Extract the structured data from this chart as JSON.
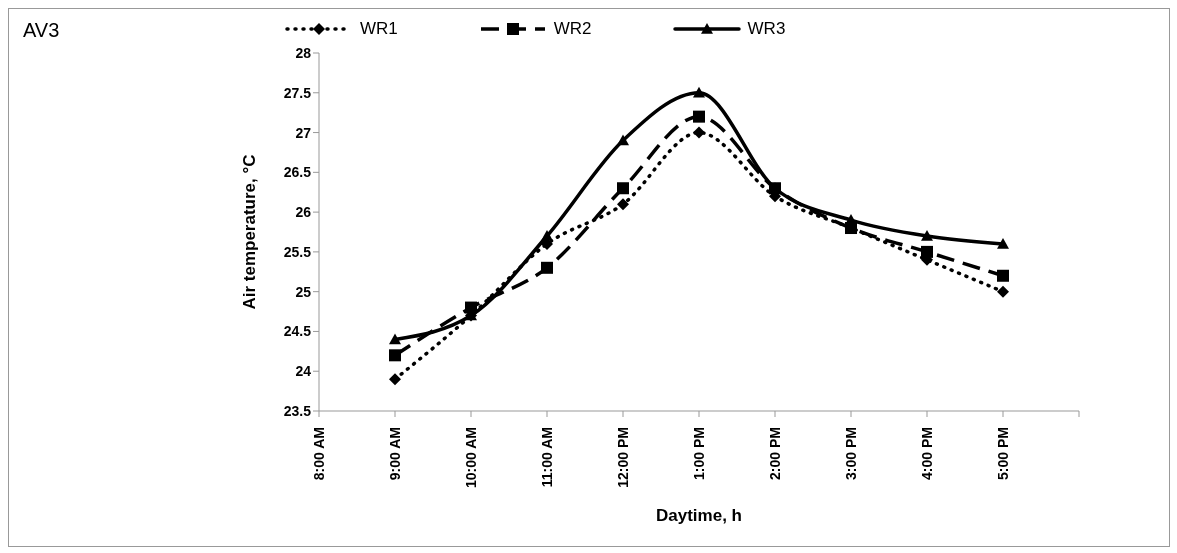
{
  "chart_data": {
    "type": "line",
    "title": "AV3",
    "xlabel": "Daytime, h",
    "ylabel": "Air temperature, °C",
    "categories": [
      "8:00 AM",
      "9:00 AM",
      "10:00 AM",
      "11:00 AM",
      "12:00 PM",
      "1:00 PM",
      "2:00 PM",
      "3:00 PM",
      "4:00 PM",
      "5:00 PM",
      null
    ],
    "series": [
      {
        "name": "WR1",
        "color": "#000000",
        "marker": "diamond",
        "line_style": "dotted",
        "values": [
          null,
          23.9,
          24.7,
          25.6,
          26.1,
          27.0,
          26.2,
          25.8,
          25.4,
          25.0,
          null
        ]
      },
      {
        "name": "WR2",
        "color": "#000000",
        "marker": "square",
        "line_style": "dashed",
        "values": [
          null,
          24.2,
          24.8,
          25.3,
          26.3,
          27.2,
          26.3,
          25.8,
          25.5,
          25.2,
          null
        ]
      },
      {
        "name": "WR3",
        "color": "#000000",
        "marker": "triangle",
        "line_style": "solid",
        "values": [
          null,
          24.4,
          24.7,
          25.7,
          26.9,
          27.5,
          26.3,
          25.9,
          25.7,
          25.6,
          null
        ]
      }
    ],
    "ylim": [
      23.5,
      28
    ],
    "yticks": [
      23.5,
      24,
      24.5,
      25,
      25.5,
      26,
      26.5,
      27,
      27.5,
      28
    ],
    "grid": false,
    "legend": "top"
  }
}
